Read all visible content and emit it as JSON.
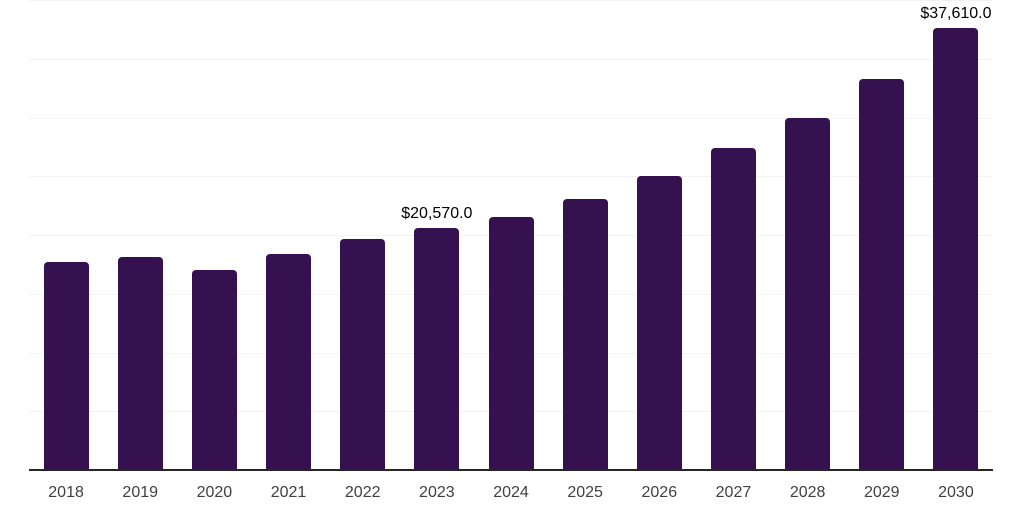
{
  "chart_data": {
    "type": "bar",
    "title": "",
    "xlabel": "",
    "ylabel": "",
    "categories": [
      "2018",
      "2019",
      "2020",
      "2021",
      "2022",
      "2023",
      "2024",
      "2025",
      "2026",
      "2027",
      "2028",
      "2029",
      "2030"
    ],
    "values": [
      17700,
      18100,
      17000,
      18400,
      19700,
      20570,
      21500,
      23100,
      25000,
      27400,
      30000,
      33300,
      37610
    ],
    "data_labels": [
      {
        "index": 5,
        "text": "$20,570.0"
      },
      {
        "index": 12,
        "text": "$37,610.0"
      }
    ],
    "ylim": [
      0,
      40000
    ],
    "gridline_step": 5000,
    "grid": true,
    "legend": false,
    "y_axis_labels_visible": false,
    "colors": {
      "bar": "#36114F",
      "gridline": "#f2f2f2",
      "axis_line": "#262626",
      "tick_label": "#404040",
      "data_label": "#000000",
      "background": "#ffffff"
    }
  }
}
